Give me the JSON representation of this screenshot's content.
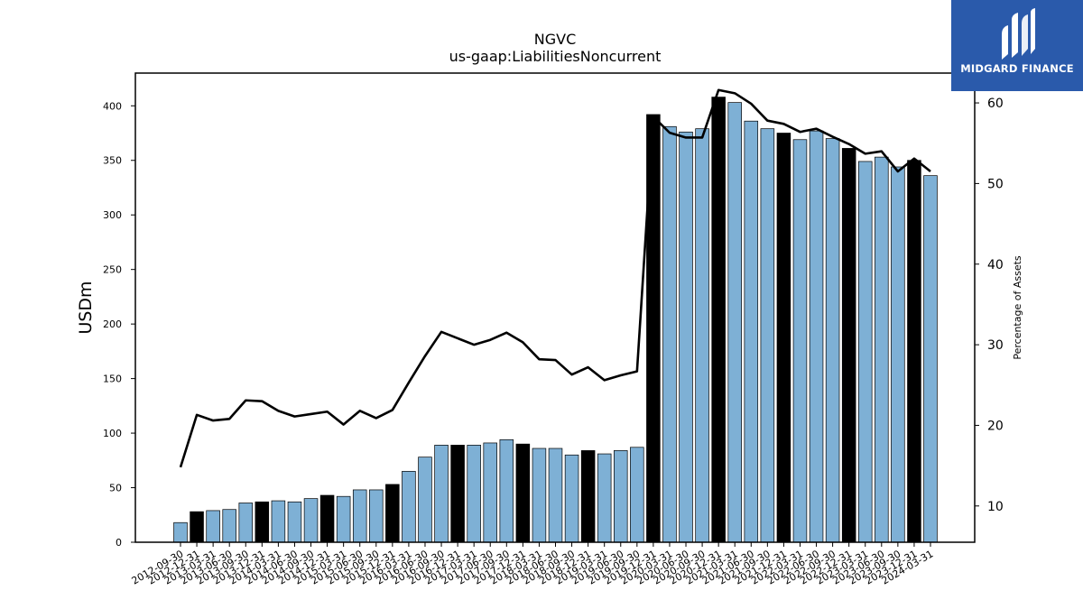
{
  "chart_data": {
    "type": "bar",
    "title": "NGVC",
    "subtitle": "us-gaap:LiabilitiesNoncurrent",
    "ylabel": "USDm",
    "y2label": "Percentage of Assets",
    "ylim": [
      0,
      430
    ],
    "y2lim": [
      5.5,
      63.7
    ],
    "yticks": [
      0,
      50,
      100,
      150,
      200,
      250,
      300,
      350,
      400
    ],
    "y2ticks": [
      10,
      20,
      30,
      40,
      50,
      60
    ],
    "colors": {
      "bar": "#7eb0d5",
      "highlight": "#000000",
      "line": "#000000"
    },
    "categories": [
      "2012-09-30",
      "2012-12-31",
      "2013-03-31",
      "2013-06-30",
      "2013-09-30",
      "2013-12-31",
      "2014-03-31",
      "2014-06-30",
      "2014-09-30",
      "2014-12-31",
      "2015-03-31",
      "2015-06-30",
      "2015-09-30",
      "2015-12-31",
      "2016-03-31",
      "2016-06-30",
      "2016-09-30",
      "2016-12-31",
      "2017-03-31",
      "2017-06-30",
      "2017-09-30",
      "2017-12-31",
      "2018-03-31",
      "2018-06-30",
      "2018-09-30",
      "2018-12-31",
      "2019-03-31",
      "2019-06-30",
      "2019-09-30",
      "2019-12-31",
      "2020-03-31",
      "2020-06-30",
      "2020-09-30",
      "2020-12-31",
      "2021-03-31",
      "2021-06-30",
      "2021-09-30",
      "2021-12-31",
      "2022-03-31",
      "2022-06-30",
      "2022-09-30",
      "2022-12-31",
      "2023-03-31",
      "2023-06-30",
      "2023-09-30",
      "2023-12-31",
      "2024-03-31"
    ],
    "series": [
      {
        "name": "",
        "type": "bar",
        "values": [
          18,
          28,
          29,
          30,
          36,
          37,
          38,
          37,
          40,
          43,
          42,
          48,
          48,
          53,
          65,
          78,
          89,
          89,
          89,
          91,
          94,
          90,
          86,
          86,
          80,
          84,
          81,
          84,
          87,
          392,
          381,
          376,
          379,
          408,
          403,
          386,
          379,
          375,
          369,
          377,
          370,
          361,
          349,
          353,
          344,
          350,
          336
        ],
        "highlight": [
          false,
          true,
          false,
          false,
          false,
          true,
          false,
          false,
          false,
          true,
          false,
          false,
          false,
          true,
          false,
          false,
          false,
          true,
          false,
          false,
          false,
          true,
          false,
          false,
          false,
          true,
          false,
          false,
          false,
          true,
          false,
          false,
          false,
          true,
          false,
          false,
          false,
          true,
          false,
          false,
          false,
          true,
          false,
          false,
          false,
          true,
          false
        ]
      },
      {
        "name": "",
        "type": "line",
        "axis": "right",
        "values": [
          14.8,
          21.3,
          20.6,
          20.8,
          23.1,
          23.0,
          21.8,
          21.1,
          21.4,
          21.7,
          20.1,
          21.8,
          20.9,
          21.9,
          25.3,
          28.6,
          31.6,
          30.8,
          30.0,
          30.6,
          31.5,
          30.3,
          28.2,
          28.1,
          26.3,
          27.2,
          25.6,
          26.2,
          26.7,
          58.3,
          56.3,
          55.7,
          55.7,
          61.6,
          61.2,
          59.9,
          57.8,
          57.4,
          56.4,
          56.8,
          55.8,
          54.9,
          53.7,
          54.0,
          51.5,
          53.1,
          51.5
        ]
      }
    ],
    "grid": false,
    "legend": "none"
  },
  "logo": {
    "text": "MIDGARD FINANCE"
  }
}
